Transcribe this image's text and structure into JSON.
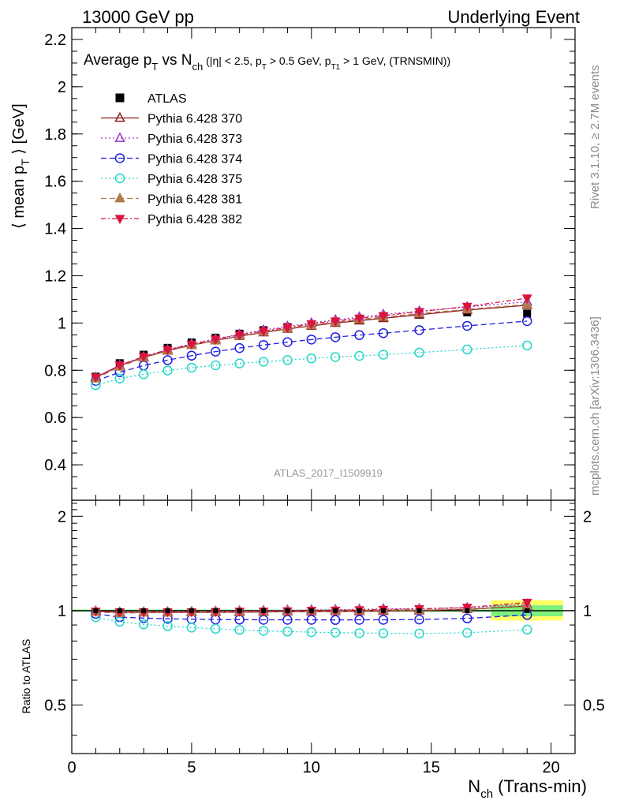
{
  "header": {
    "left": "13000 GeV pp",
    "right": "Underlying Event"
  },
  "side_labels": {
    "rivet": "Rivet 3.1.10, ≥ 2.7M events",
    "mcplots": "mcplots.cern.ch [arXiv:1306.3436]"
  },
  "analysis_id": "ATLAS_2017_I1509919",
  "colors": {
    "ATLAS": "#000000",
    "p370": "#8b1a1a",
    "p373": "#9932cc",
    "p374": "#1f1fe0",
    "p375": "#22d8c8",
    "p381": "#b07a4a",
    "p382": "#dc143c",
    "band_inner": "#7df07d",
    "band_outer": "#ffff66"
  },
  "chart_data": [
    {
      "type": "line",
      "title": "Average p_T vs N_ch (|η| < 2.5, p_T > 0.5 GeV, p_T1 > 1 GeV, (TRNSMIN))",
      "ylabel": "⟨ mean p_T ⟩ [GeV]",
      "ylim": [
        0.25,
        2.25
      ],
      "xlim": [
        0,
        21
      ],
      "yticks": [
        0.4,
        0.6,
        0.8,
        1,
        1.2,
        1.4,
        1.6,
        1.8,
        2,
        2.2
      ],
      "grid": false,
      "legend": "top-left",
      "x": [
        1,
        2,
        3,
        4,
        5,
        6,
        7,
        8,
        9,
        10,
        11,
        12,
        13,
        14.5,
        16.5,
        19
      ],
      "series": [
        {
          "name": "ATLAS",
          "marker": "square",
          "values": [
            0.773,
            0.83,
            0.866,
            0.895,
            0.918,
            0.938,
            0.955,
            0.97,
            0.983,
            0.995,
            1.006,
            1.015,
            1.023,
            1.035,
            1.045,
            1.04
          ]
        },
        {
          "name": "Pythia 6.428 370",
          "marker": "triangle-open",
          "values": [
            0.77,
            0.82,
            0.855,
            0.883,
            0.906,
            0.926,
            0.944,
            0.96,
            0.975,
            0.988,
            1.0,
            1.01,
            1.02,
            1.035,
            1.055,
            1.075
          ]
        },
        {
          "name": "Pythia 6.428 373",
          "marker": "triangle-open",
          "values": [
            0.768,
            0.82,
            0.857,
            0.887,
            0.912,
            0.933,
            0.952,
            0.97,
            0.986,
            1.0,
            1.013,
            1.025,
            1.036,
            1.05,
            1.068,
            1.09
          ]
        },
        {
          "name": "Pythia 6.428 374",
          "marker": "circle-open",
          "values": [
            0.755,
            0.792,
            0.82,
            0.843,
            0.862,
            0.879,
            0.894,
            0.907,
            0.919,
            0.93,
            0.94,
            0.949,
            0.957,
            0.97,
            0.988,
            1.008
          ]
        },
        {
          "name": "Pythia 6.428 375",
          "marker": "circle-open",
          "values": [
            0.737,
            0.765,
            0.783,
            0.799,
            0.811,
            0.821,
            0.829,
            0.836,
            0.843,
            0.85,
            0.856,
            0.861,
            0.866,
            0.875,
            0.888,
            0.905
          ]
        },
        {
          "name": "Pythia 6.428 381",
          "marker": "triangle-filled",
          "values": [
            0.765,
            0.815,
            0.853,
            0.882,
            0.906,
            0.927,
            0.945,
            0.962,
            0.977,
            0.991,
            1.003,
            1.015,
            1.025,
            1.04,
            1.058,
            1.078
          ]
        },
        {
          "name": "Pythia 6.428 382",
          "marker": "triangle-down-filled",
          "values": [
            0.77,
            0.822,
            0.858,
            0.887,
            0.91,
            0.931,
            0.95,
            0.966,
            0.981,
            0.996,
            1.008,
            1.02,
            1.031,
            1.048,
            1.07,
            1.105
          ]
        }
      ]
    },
    {
      "type": "line",
      "xlabel": "N_ch (Trans-min)",
      "ylabel": "Ratio to ATLAS",
      "ylim": [
        0.35,
        2.25
      ],
      "xlim": [
        0,
        21
      ],
      "scale": "log",
      "yticks": [
        0.5,
        1,
        2
      ],
      "xticks": [
        0,
        5,
        10,
        15,
        20
      ],
      "x": [
        1,
        2,
        3,
        4,
        5,
        6,
        7,
        8,
        9,
        10,
        11,
        12,
        13,
        14.5,
        16.5,
        19
      ],
      "band": {
        "x": [
          17.5,
          20.5
        ],
        "inner": [
          0.96,
          1.04
        ],
        "outer": [
          0.93,
          1.08
        ]
      },
      "series": [
        {
          "name": "Pythia 6.428 370",
          "values": [
            0.996,
            0.988,
            0.987,
            0.987,
            0.987,
            0.987,
            0.988,
            0.99,
            0.992,
            0.993,
            0.994,
            0.995,
            0.997,
            1.0,
            1.01,
            1.034
          ]
        },
        {
          "name": "Pythia 6.428 373",
          "values": [
            0.994,
            0.988,
            0.99,
            0.991,
            0.993,
            0.995,
            0.997,
            1.0,
            1.003,
            1.005,
            1.007,
            1.01,
            1.013,
            1.014,
            1.022,
            1.048
          ]
        },
        {
          "name": "Pythia 6.428 374",
          "values": [
            0.977,
            0.954,
            0.947,
            0.942,
            0.939,
            0.937,
            0.936,
            0.935,
            0.935,
            0.935,
            0.934,
            0.935,
            0.935,
            0.937,
            0.945,
            0.969
          ]
        },
        {
          "name": "Pythia 6.428 375",
          "values": [
            0.953,
            0.922,
            0.904,
            0.893,
            0.883,
            0.875,
            0.868,
            0.862,
            0.858,
            0.854,
            0.851,
            0.848,
            0.847,
            0.845,
            0.85,
            0.87
          ]
        },
        {
          "name": "Pythia 6.428 381",
          "values": [
            0.99,
            0.982,
            0.985,
            0.985,
            0.987,
            0.988,
            0.99,
            0.992,
            0.994,
            0.996,
            0.997,
            1.0,
            1.002,
            1.005,
            1.012,
            1.037
          ]
        },
        {
          "name": "Pythia 6.428 382",
          "values": [
            0.996,
            0.99,
            0.991,
            0.991,
            0.991,
            0.993,
            0.995,
            0.996,
            0.998,
            1.001,
            1.002,
            1.005,
            1.008,
            1.013,
            1.024,
            1.062
          ]
        }
      ]
    }
  ]
}
